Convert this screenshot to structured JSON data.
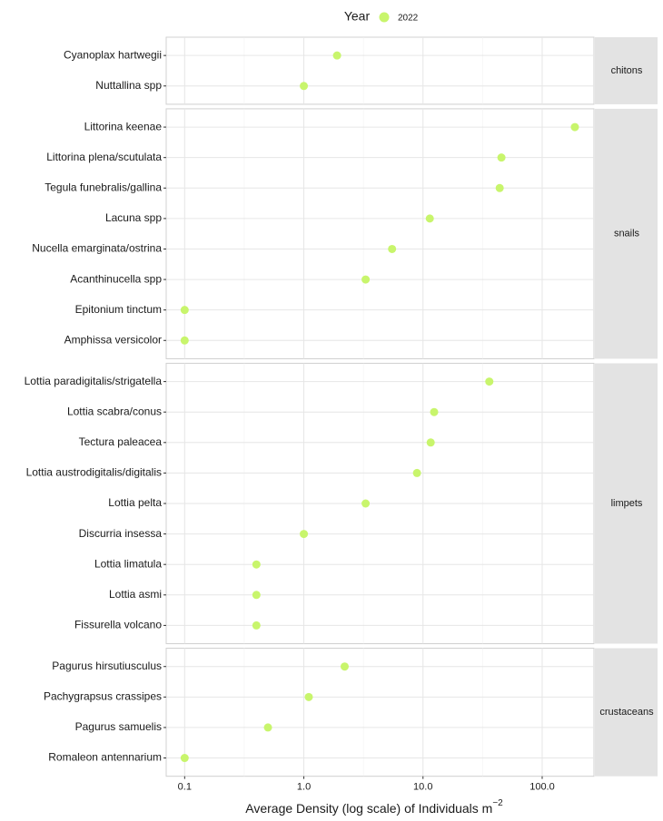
{
  "chart_data": {
    "type": "dot",
    "xscale": "log",
    "xlabel": "Average Density (log scale) of Individuals m",
    "xlabel_superscript": "−2",
    "legend_title": "Year",
    "legend_position": "top",
    "grid": true,
    "series": [
      {
        "name": "2022",
        "color": "#c8f56c"
      }
    ],
    "xlim": [
      0.07,
      272
    ],
    "xticks": [
      0.1,
      {
        "value": 1,
        "label": "1.0"
      },
      {
        "value": 10,
        "label": "10.0"
      },
      {
        "value": 100,
        "label": "100.0"
      }
    ],
    "facets": [
      {
        "name": "chitons",
        "categories": [
          "Cyanoplax hartwegii",
          "Nuttallina spp"
        ],
        "values": [
          1.9,
          1.0
        ]
      },
      {
        "name": "snails",
        "categories": [
          "Littorina keenae",
          "Littorina plena/scutulata",
          "Tegula funebralis/gallina",
          "Lacuna spp",
          "Nucella emarginata/ostrina",
          "Acanthinucella spp",
          "Epitonium tinctum",
          "Amphissa versicolor"
        ],
        "values": [
          188,
          45.5,
          44,
          11.4,
          5.5,
          3.3,
          0.1,
          0.1
        ]
      },
      {
        "name": "limpets",
        "categories": [
          "Lottia paradigitalis/strigatella",
          "Lottia scabra/conus",
          "Tectura paleacea",
          "Lottia austrodigitalis/digitalis",
          "Lottia pelta",
          "Discurria insessa",
          "Lottia limatula",
          "Lottia asmi",
          "Fissurella volcano"
        ],
        "values": [
          36,
          12.4,
          11.6,
          8.9,
          3.3,
          1.0,
          0.4,
          0.4,
          0.4
        ]
      },
      {
        "name": "crustaceans",
        "categories": [
          "Pagurus hirsutiusculus",
          "Pachygrapsus crassipes",
          "Pagurus samuelis",
          "Romaleon antennarium"
        ],
        "values": [
          2.2,
          1.1,
          0.5,
          0.1
        ]
      }
    ]
  }
}
